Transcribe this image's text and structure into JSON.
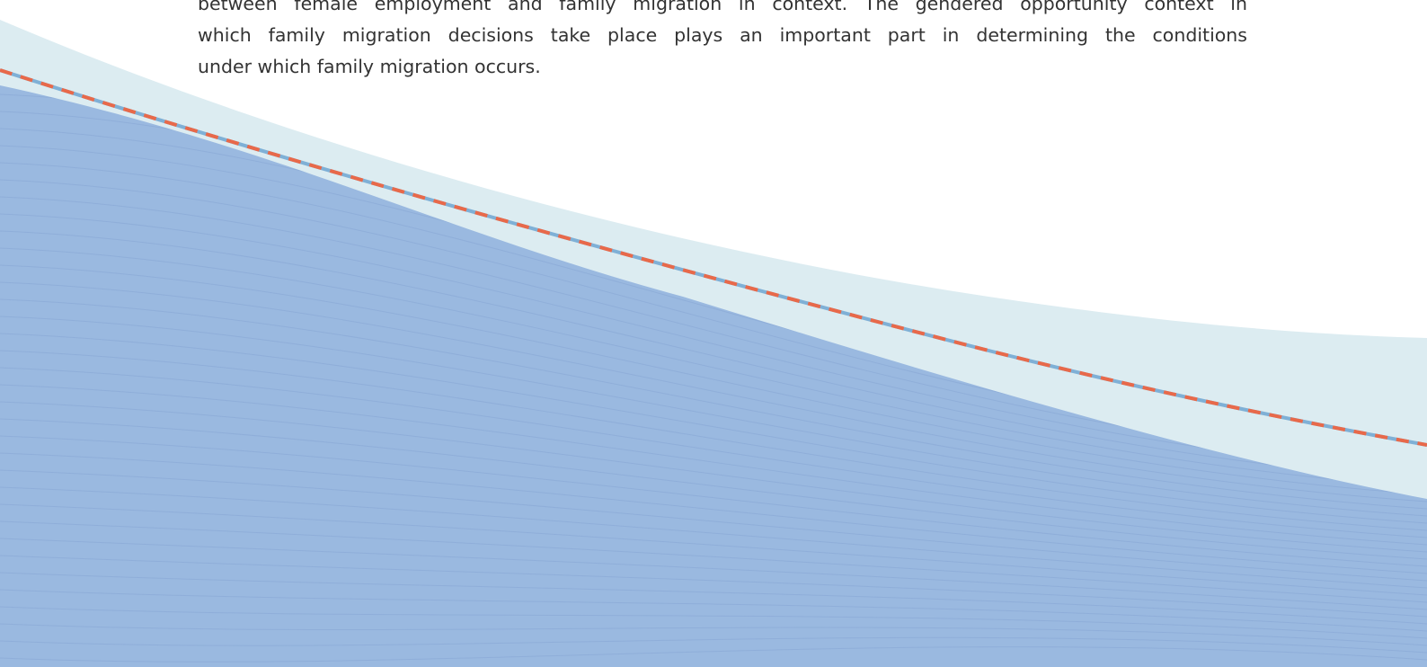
{
  "document": {
    "paragraph_lines": [
      "between female employment and family migration in context. The gendered opportunity context in",
      "which family migration decisions take place plays an important part in determining the conditions",
      "under which family migration occurs."
    ]
  },
  "decoration": {
    "colors": {
      "light_band": "#dcecf1",
      "dark_band": "#9ab9e0",
      "stripe": "#86a6d4",
      "dash_red": "#e8694a",
      "dash_blue": "#7fb0d6"
    }
  }
}
